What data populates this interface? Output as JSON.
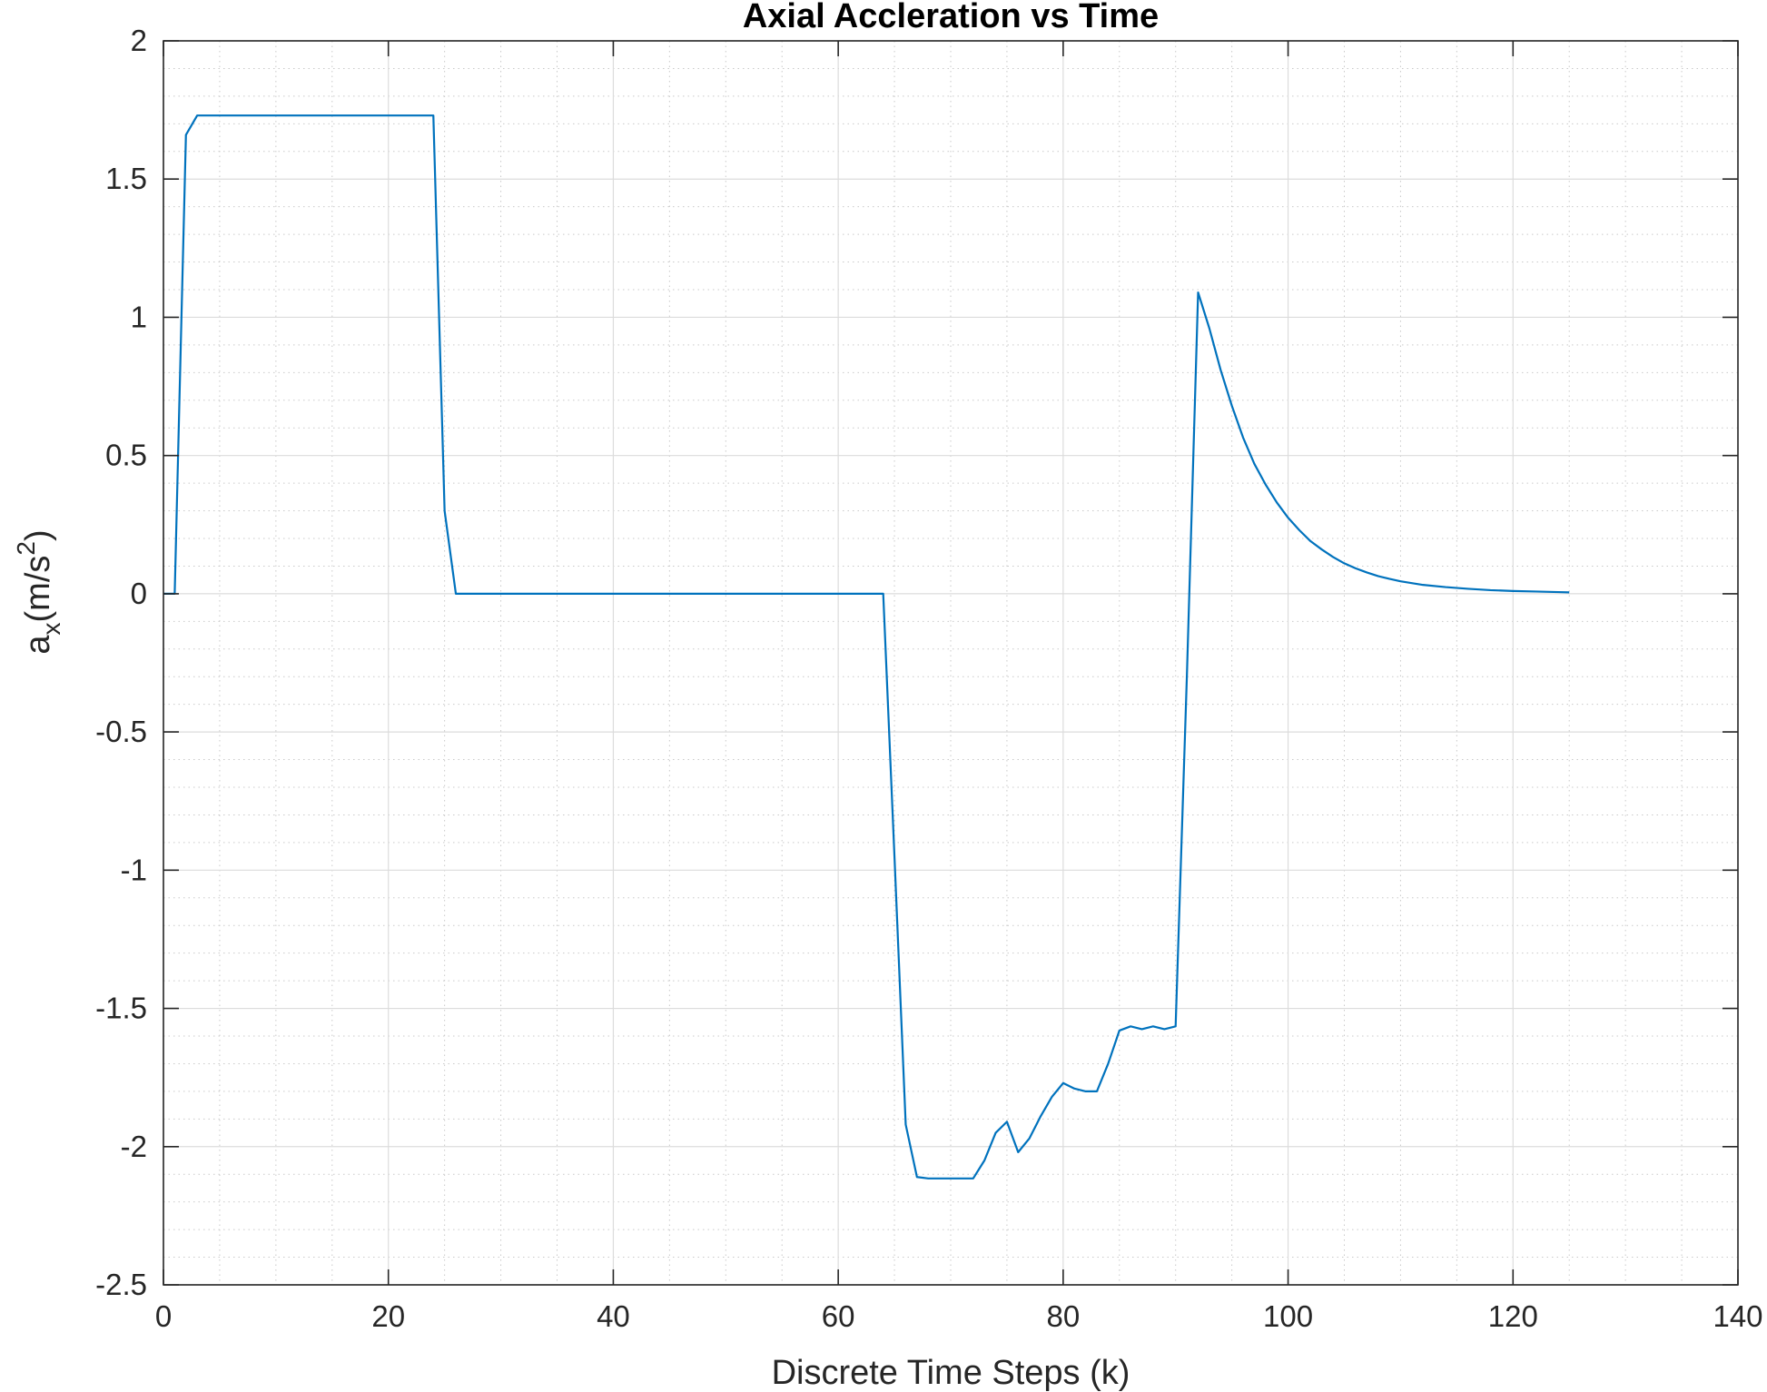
{
  "chart_data": {
    "type": "line",
    "title": "Axial Accleration vs Time",
    "xlabel": "Discrete Time Steps (k)",
    "ylabel": {
      "base": "a",
      "subscript": "x",
      "unit_prefix": "(m/s",
      "superscript": "2",
      "unit_suffix": ")"
    },
    "xlim": [
      0,
      140
    ],
    "ylim": [
      -2.5,
      2
    ],
    "xticks": [
      "0",
      "20",
      "40",
      "60",
      "80",
      "100",
      "120",
      "140"
    ],
    "yticks": [
      "-2.5",
      "-2",
      "-1.5",
      "-1",
      "-0.5",
      "0",
      "0.5",
      "1",
      "1.5",
      "2"
    ],
    "grid": true,
    "minor_grid": true,
    "series": [
      {
        "color": "#0072BD",
        "x": [
          0,
          1,
          2,
          3,
          4,
          24,
          25,
          26,
          64,
          65,
          66,
          67,
          68,
          72,
          73,
          74,
          75,
          76,
          77,
          78,
          79,
          80,
          81,
          82,
          83,
          84,
          85,
          86,
          87,
          88,
          89,
          90,
          91,
          92,
          93,
          94,
          95,
          96,
          97,
          98,
          99,
          100,
          101,
          102,
          103,
          104,
          105,
          106,
          107,
          108,
          109,
          110,
          112,
          114,
          116,
          118,
          120,
          122,
          124,
          125
        ],
        "y": [
          0,
          0,
          1.66,
          1.73,
          1.73,
          1.73,
          0.3,
          0,
          0,
          -0.95,
          -1.92,
          -2.11,
          -2.115,
          -2.115,
          -2.05,
          -1.95,
          -1.91,
          -2.02,
          -1.97,
          -1.89,
          -1.82,
          -1.77,
          -1.79,
          -1.8,
          -1.8,
          -1.7,
          -1.58,
          -1.565,
          -1.575,
          -1.565,
          -1.575,
          -1.565,
          -0.3,
          1.09,
          0.96,
          0.81,
          0.68,
          0.565,
          0.47,
          0.395,
          0.33,
          0.275,
          0.23,
          0.19,
          0.16,
          0.133,
          0.11,
          0.092,
          0.077,
          0.064,
          0.054,
          0.045,
          0.032,
          0.024,
          0.018,
          0.013,
          0.01,
          0.008,
          0.006,
          0.005
        ]
      }
    ]
  }
}
